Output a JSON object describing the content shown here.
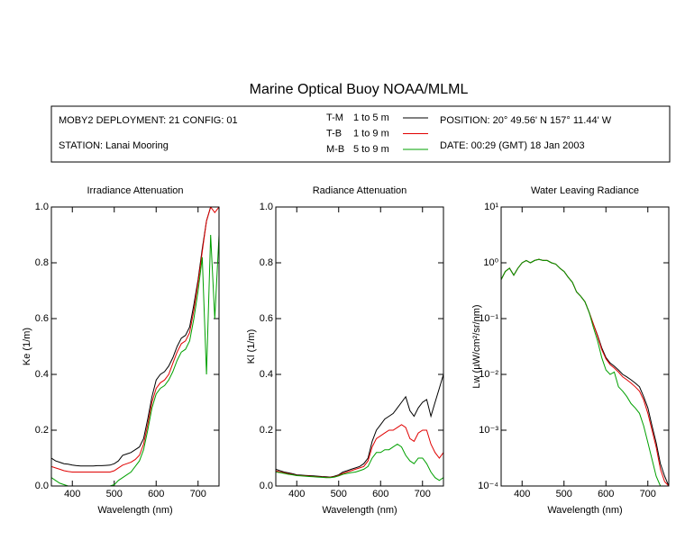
{
  "title": "Marine Optical Buoy NOAA/MLML",
  "info": {
    "deployment": "MOBY2 DEPLOYMENT: 21 CONFIG: 01",
    "station": "STATION: Lanai Mooring",
    "position": "POSITION: 20° 49.56' N   157° 11.44' W",
    "date": "DATE: 00:29 (GMT) 18 Jan 2003",
    "depths": [
      "1 to 5  m",
      "1 to 9  m",
      "5 to 9  m"
    ]
  },
  "chart_data": [
    {
      "type": "line",
      "title": "Irradiance Attenuation",
      "xlabel": "Wavelength (nm)",
      "ylabel": "Ke  (1/m)",
      "x": [
        350,
        360,
        370,
        380,
        390,
        400,
        410,
        420,
        430,
        440,
        450,
        460,
        470,
        480,
        490,
        500,
        510,
        520,
        530,
        540,
        550,
        560,
        570,
        580,
        590,
        600,
        610,
        620,
        630,
        640,
        650,
        660,
        670,
        680,
        690,
        700,
        710,
        720,
        730,
        740,
        750
      ],
      "xlim": [
        350,
        750
      ],
      "xticks": [
        400,
        500,
        600,
        700
      ],
      "ylim": [
        0,
        1
      ],
      "yticks": [
        {
          "value": 0,
          "label": "0.0"
        },
        0.2,
        0.4,
        0.6,
        0.8,
        {
          "value": 1,
          "label": "1.0"
        }
      ],
      "series": [
        {
          "name": "T-M",
          "color": "#000000",
          "values": [
            0.1,
            0.09,
            0.085,
            0.08,
            0.078,
            0.075,
            0.073,
            0.072,
            0.072,
            0.072,
            0.072,
            0.073,
            0.073,
            0.074,
            0.075,
            0.08,
            0.09,
            0.11,
            0.115,
            0.12,
            0.13,
            0.14,
            0.17,
            0.24,
            0.32,
            0.38,
            0.4,
            0.41,
            0.43,
            0.46,
            0.5,
            0.53,
            0.54,
            0.57,
            0.65,
            0.74,
            0.85,
            0.95,
            1.0,
            1.0,
            1.0
          ]
        },
        {
          "name": "T-B",
          "color": "#e00000",
          "values": [
            0.07,
            0.065,
            0.06,
            0.055,
            0.052,
            0.05,
            0.05,
            0.05,
            0.05,
            0.05,
            0.05,
            0.05,
            0.05,
            0.05,
            0.05,
            0.055,
            0.065,
            0.075,
            0.08,
            0.085,
            0.095,
            0.11,
            0.15,
            0.22,
            0.3,
            0.35,
            0.37,
            0.38,
            0.4,
            0.44,
            0.48,
            0.51,
            0.52,
            0.55,
            0.63,
            0.73,
            0.84,
            0.95,
            1.0,
            0.98,
            1.0
          ]
        },
        {
          "name": "M-B",
          "color": "#00a000",
          "values": [
            0.03,
            0.02,
            0.01,
            0.005,
            0,
            0,
            0,
            0,
            0,
            0,
            0,
            0,
            0,
            0,
            0,
            0.005,
            0.02,
            0.03,
            0.04,
            0.05,
            0.07,
            0.09,
            0.13,
            0.2,
            0.28,
            0.33,
            0.35,
            0.36,
            0.38,
            0.41,
            0.45,
            0.48,
            0.49,
            0.52,
            0.6,
            0.7,
            0.82,
            0.4,
            0.9,
            0.6,
            0.9
          ]
        }
      ]
    },
    {
      "type": "line",
      "title": "Radiance Attenuation",
      "xlabel": "Wavelength (nm)",
      "ylabel": "Kl  (1/m)",
      "x": [
        350,
        360,
        370,
        380,
        390,
        400,
        410,
        420,
        430,
        440,
        450,
        460,
        470,
        480,
        490,
        500,
        510,
        520,
        530,
        540,
        550,
        560,
        570,
        580,
        590,
        600,
        610,
        620,
        630,
        640,
        650,
        660,
        670,
        680,
        690,
        700,
        710,
        720,
        730,
        740,
        750
      ],
      "xlim": [
        350,
        750
      ],
      "xticks": [
        400,
        500,
        600,
        700
      ],
      "ylim": [
        0,
        1
      ],
      "yticks": [
        {
          "value": 0,
          "label": "0.0"
        },
        0.2,
        0.4,
        0.6,
        0.8,
        {
          "value": 1,
          "label": "1.0"
        }
      ],
      "series": [
        {
          "name": "T-M",
          "color": "#000000",
          "values": [
            0.06,
            0.055,
            0.05,
            0.047,
            0.044,
            0.04,
            0.039,
            0.038,
            0.037,
            0.036,
            0.035,
            0.034,
            0.033,
            0.032,
            0.035,
            0.04,
            0.05,
            0.055,
            0.06,
            0.065,
            0.07,
            0.08,
            0.1,
            0.16,
            0.2,
            0.22,
            0.24,
            0.25,
            0.26,
            0.28,
            0.3,
            0.32,
            0.27,
            0.25,
            0.28,
            0.3,
            0.31,
            0.25,
            0.3,
            0.35,
            0.4
          ]
        },
        {
          "name": "T-B",
          "color": "#e00000",
          "values": [
            0.055,
            0.05,
            0.047,
            0.044,
            0.041,
            0.038,
            0.037,
            0.036,
            0.035,
            0.034,
            0.033,
            0.032,
            0.031,
            0.031,
            0.033,
            0.038,
            0.045,
            0.05,
            0.055,
            0.06,
            0.065,
            0.07,
            0.09,
            0.14,
            0.17,
            0.18,
            0.19,
            0.2,
            0.2,
            0.21,
            0.22,
            0.21,
            0.17,
            0.16,
            0.19,
            0.2,
            0.2,
            0.15,
            0.12,
            0.1,
            0.12
          ]
        },
        {
          "name": "M-B",
          "color": "#00a000",
          "values": [
            0.05,
            0.048,
            0.045,
            0.042,
            0.04,
            0.037,
            0.036,
            0.035,
            0.034,
            0.033,
            0.032,
            0.031,
            0.03,
            0.03,
            0.032,
            0.036,
            0.042,
            0.045,
            0.048,
            0.05,
            0.055,
            0.06,
            0.07,
            0.1,
            0.12,
            0.12,
            0.13,
            0.13,
            0.14,
            0.15,
            0.14,
            0.11,
            0.09,
            0.08,
            0.1,
            0.1,
            0.08,
            0.05,
            0.03,
            0.02,
            0.03
          ]
        }
      ]
    },
    {
      "type": "line",
      "title": "Water Leaving Radiance",
      "xlabel": "Wavelength (nm)",
      "ylabel": "Lw  (µW/cm²/sr/nm)",
      "log_y": true,
      "x": [
        350,
        360,
        370,
        380,
        390,
        400,
        410,
        420,
        430,
        440,
        450,
        460,
        470,
        480,
        490,
        500,
        510,
        520,
        530,
        540,
        550,
        560,
        570,
        580,
        590,
        600,
        610,
        620,
        630,
        640,
        650,
        660,
        670,
        680,
        690,
        700,
        710,
        720,
        730,
        740,
        750
      ],
      "xlim": [
        350,
        750
      ],
      "xticks": [
        400,
        500,
        600,
        700
      ],
      "ylim": [
        0.0001,
        10
      ],
      "yticks": [
        {
          "value": 0.0001,
          "label": "10⁻⁴"
        },
        {
          "value": 0.001,
          "label": "10⁻³"
        },
        {
          "value": 0.01,
          "label": "10⁻²"
        },
        {
          "value": 0.1,
          "label": "10⁻¹"
        },
        {
          "value": 1,
          "label": "10⁰"
        },
        {
          "value": 10,
          "label": "10¹"
        }
      ],
      "series": [
        {
          "name": "T-M",
          "color": "#000000",
          "values": [
            0.5,
            0.7,
            0.8,
            0.6,
            0.8,
            1.0,
            1.1,
            1.0,
            1.1,
            1.15,
            1.1,
            1.1,
            1.0,
            0.95,
            0.8,
            0.7,
            0.55,
            0.45,
            0.3,
            0.25,
            0.2,
            0.13,
            0.08,
            0.05,
            0.03,
            0.02,
            0.016,
            0.014,
            0.012,
            0.01,
            0.009,
            0.008,
            0.007,
            0.006,
            0.004,
            0.0025,
            0.0012,
            0.0006,
            0.00025,
            0.00015,
            0.0001
          ]
        },
        {
          "name": "T-B",
          "color": "#e00000",
          "values": [
            0.5,
            0.7,
            0.8,
            0.6,
            0.8,
            1.0,
            1.1,
            1.0,
            1.1,
            1.15,
            1.1,
            1.1,
            1.0,
            0.95,
            0.8,
            0.7,
            0.55,
            0.45,
            0.3,
            0.25,
            0.2,
            0.13,
            0.08,
            0.048,
            0.028,
            0.019,
            0.015,
            0.013,
            0.011,
            0.009,
            0.008,
            0.007,
            0.006,
            0.005,
            0.0035,
            0.002,
            0.001,
            0.0005,
            0.0002,
            0.00012,
            0.0001
          ]
        },
        {
          "name": "M-B",
          "color": "#00a000",
          "values": [
            0.5,
            0.7,
            0.8,
            0.6,
            0.8,
            1.0,
            1.1,
            1.0,
            1.1,
            1.15,
            1.1,
            1.1,
            1.0,
            0.95,
            0.8,
            0.7,
            0.55,
            0.45,
            0.3,
            0.25,
            0.2,
            0.13,
            0.07,
            0.04,
            0.02,
            0.012,
            0.01,
            0.011,
            0.006,
            0.005,
            0.004,
            0.003,
            0.0025,
            0.002,
            0.0012,
            0.0006,
            0.0003,
            0.00015,
            0.0001,
            0.0001,
            0.0001
          ]
        }
      ]
    }
  ]
}
